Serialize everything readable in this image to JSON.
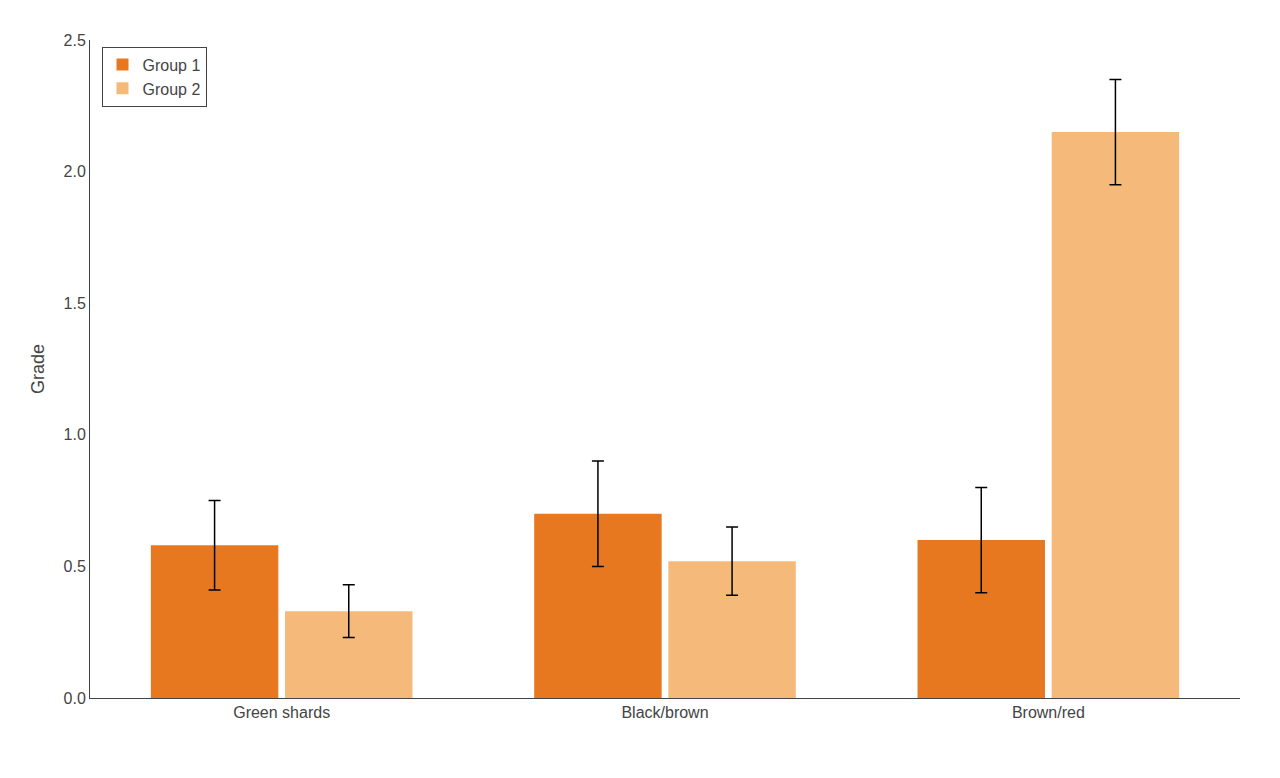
{
  "chart_data": {
    "type": "bar",
    "categories": [
      "Green shards",
      "Black/brown",
      "Brown/red"
    ],
    "series": [
      {
        "name": "Group 1",
        "color": "#E87820",
        "values": [
          0.58,
          0.7,
          0.6
        ],
        "errors": [
          0.17,
          0.2,
          0.2
        ]
      },
      {
        "name": "Group 2",
        "color": "#F5BA7A",
        "values": [
          0.33,
          0.52,
          2.15
        ],
        "errors": [
          0.1,
          0.13,
          0.2
        ]
      }
    ],
    "ylabel": "Grade",
    "ylim": [
      0,
      2.5
    ],
    "yticks": [
      {
        "value": 0.0,
        "label": "0.0"
      },
      0.5,
      {
        "value": 1.0,
        "label": "1.0"
      },
      1.5,
      {
        "value": 2.0,
        "label": "2.0"
      },
      2.5
    ],
    "legend": "upper left",
    "grid": false
  }
}
